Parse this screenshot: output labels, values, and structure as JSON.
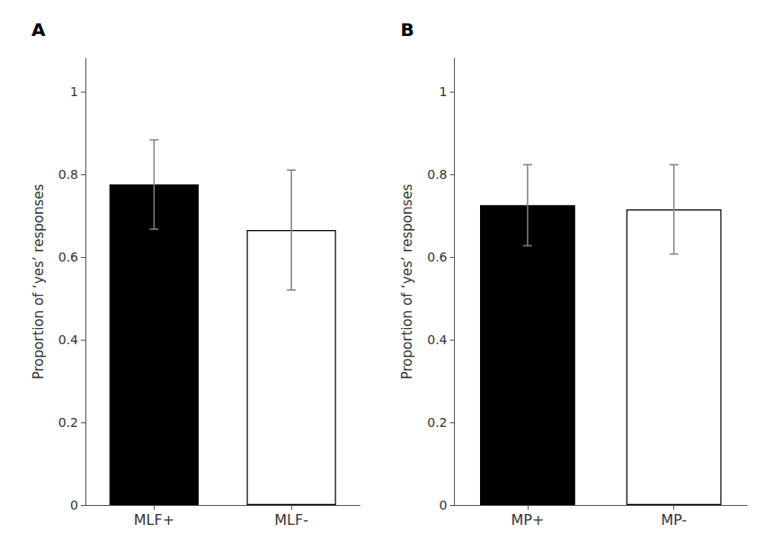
{
  "chart_data": [
    {
      "type": "bar",
      "title": "A",
      "ylabel": "Proportion of ‘yes’ responses",
      "categories": [
        "MLF+",
        "MLF-"
      ],
      "values": [
        0.775,
        0.665
      ],
      "errors": [
        0.108,
        0.145
      ],
      "colors": [
        "#000000",
        "#ffffff"
      ],
      "ylim": [
        0,
        1.08
      ],
      "yticks": [
        0,
        0.2,
        0.4,
        0.6,
        0.8,
        1
      ],
      "grid": false
    },
    {
      "type": "bar",
      "title": "B",
      "ylabel": "Proportion of ‘yes’ responses",
      "categories": [
        "MP+",
        "MP-"
      ],
      "values": [
        0.725,
        0.715
      ],
      "errors": [
        0.098,
        0.108
      ],
      "colors": [
        "#000000",
        "#ffffff"
      ],
      "ylim": [
        0,
        1.08
      ],
      "yticks": [
        0,
        0.2,
        0.4,
        0.6,
        0.8,
        1
      ],
      "grid": false
    }
  ]
}
